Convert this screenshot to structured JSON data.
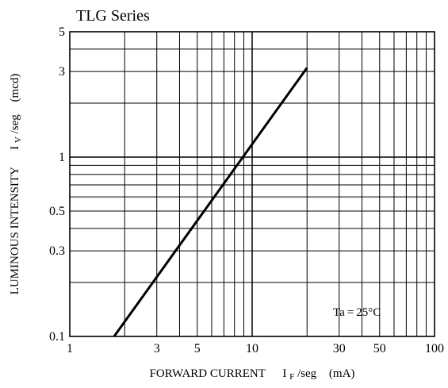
{
  "chart_data": {
    "type": "line",
    "title": "TLG Series",
    "xlabel": {
      "name": "FORWARD CURRENT",
      "symbol": "I",
      "subscript": "F",
      "suffix": "/seg",
      "unit": "(mA)"
    },
    "ylabel": {
      "name": "LUMINOUS INTENSITY",
      "symbol": "I",
      "subscript": "V",
      "suffix": "/seg",
      "unit": "(mcd)"
    },
    "x_scale": "log",
    "y_scale": "log",
    "xlim": [
      1,
      100
    ],
    "ylim": [
      0.1,
      5
    ],
    "x_ticks": [
      1,
      3,
      5,
      10,
      30,
      50,
      100
    ],
    "x_tick_labels": [
      "1",
      "3",
      "5",
      "10",
      "30",
      "50",
      "100"
    ],
    "y_ticks": [
      0.1,
      0.3,
      0.5,
      1,
      3,
      5
    ],
    "y_tick_labels": [
      "0.1",
      "0.3",
      "0.5",
      "1",
      "3",
      "5"
    ],
    "x_gridlines": [
      2,
      3,
      4,
      5,
      6,
      7,
      8,
      9,
      10,
      20,
      30,
      40,
      50,
      60,
      70,
      80,
      90
    ],
    "y_gridlines": [
      0.2,
      0.3,
      0.4,
      0.5,
      0.6,
      0.7,
      0.8,
      0.9,
      1,
      2,
      3,
      4
    ],
    "grid": true,
    "annotation": "Ta = 25°C",
    "series": [
      {
        "x": [
          1.75,
          20
        ],
        "y": [
          0.1,
          3.15
        ]
      }
    ]
  }
}
